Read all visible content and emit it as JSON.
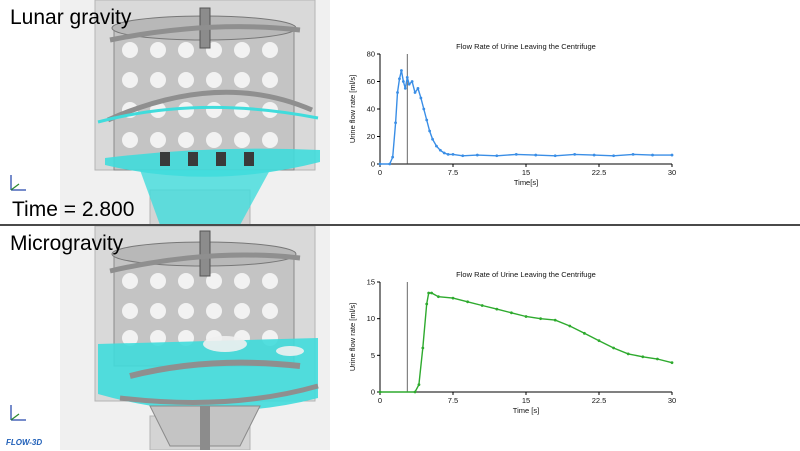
{
  "top_panel": {
    "label": "Lunar gravity",
    "time_text": "Time = 2.800"
  },
  "bottom_panel": {
    "label": "Microgravity"
  },
  "logo": "FLOW-3D",
  "colors": {
    "lunar_series": "#3a8ee6",
    "micro_series": "#2eaa2e",
    "fluid": "#40dcdc",
    "steel": "#9a9a9a"
  },
  "icons": [
    "axis-triad-icon"
  ],
  "chart_data": [
    {
      "type": "line",
      "title": "Flow Rate of Urine Leaving the Centrifuge",
      "xlabel": "Time[s]",
      "ylabel": "Urine flow rate [ml/s]",
      "xlim": [
        0,
        30
      ],
      "ylim": [
        0,
        80
      ],
      "xticks": [
        "0",
        "7.5",
        "15",
        "22.5",
        "30"
      ],
      "yticks": [
        "0",
        "20",
        "40",
        "60",
        "80"
      ],
      "marker_x": 2.8,
      "grid": false,
      "series": [
        {
          "x": [
            0,
            1.0,
            1.3,
            1.6,
            1.8,
            2.0,
            2.2,
            2.4,
            2.6,
            2.8,
            3.0,
            3.3,
            3.6,
            3.9,
            4.2,
            4.5,
            4.8,
            5.1,
            5.4,
            5.8,
            6.2,
            6.6,
            7.0,
            7.5,
            8.5,
            10,
            12,
            14,
            16,
            18,
            20,
            22,
            24,
            26,
            28,
            30
          ],
          "values": [
            0,
            0,
            5,
            30,
            52,
            62,
            68,
            60,
            55,
            63,
            58,
            60,
            52,
            55,
            48,
            40,
            32,
            24,
            18,
            13,
            10,
            8,
            7,
            7,
            6,
            6.5,
            6,
            7,
            6.5,
            6,
            7,
            6.5,
            6,
            7,
            6.5,
            6.5
          ]
        }
      ]
    },
    {
      "type": "line",
      "title": "Flow Rate of Urine Leaving the Centrifuge",
      "xlabel": "Time [s]",
      "ylabel": "Urine flow rate [ml/s]",
      "xlim": [
        0,
        30
      ],
      "ylim": [
        0,
        15
      ],
      "xticks": [
        "0",
        "7.5",
        "15",
        "22.5",
        "30"
      ],
      "yticks": [
        "0",
        "5",
        "10",
        "15"
      ],
      "marker_x": 2.8,
      "grid": false,
      "series": [
        {
          "x": [
            0,
            3.6,
            4.0,
            4.4,
            4.8,
            5.0,
            5.3,
            6,
            7.5,
            9,
            10.5,
            12,
            13.5,
            15,
            16.5,
            18,
            19.5,
            21,
            22.5,
            24,
            25.5,
            27,
            28.5,
            30
          ],
          "values": [
            0,
            0,
            1,
            6,
            12,
            13.5,
            13.5,
            13,
            12.8,
            12.3,
            11.8,
            11.3,
            10.8,
            10.3,
            10,
            9.8,
            9,
            8,
            7,
            6,
            5.2,
            4.8,
            4.5,
            4
          ]
        }
      ]
    }
  ]
}
